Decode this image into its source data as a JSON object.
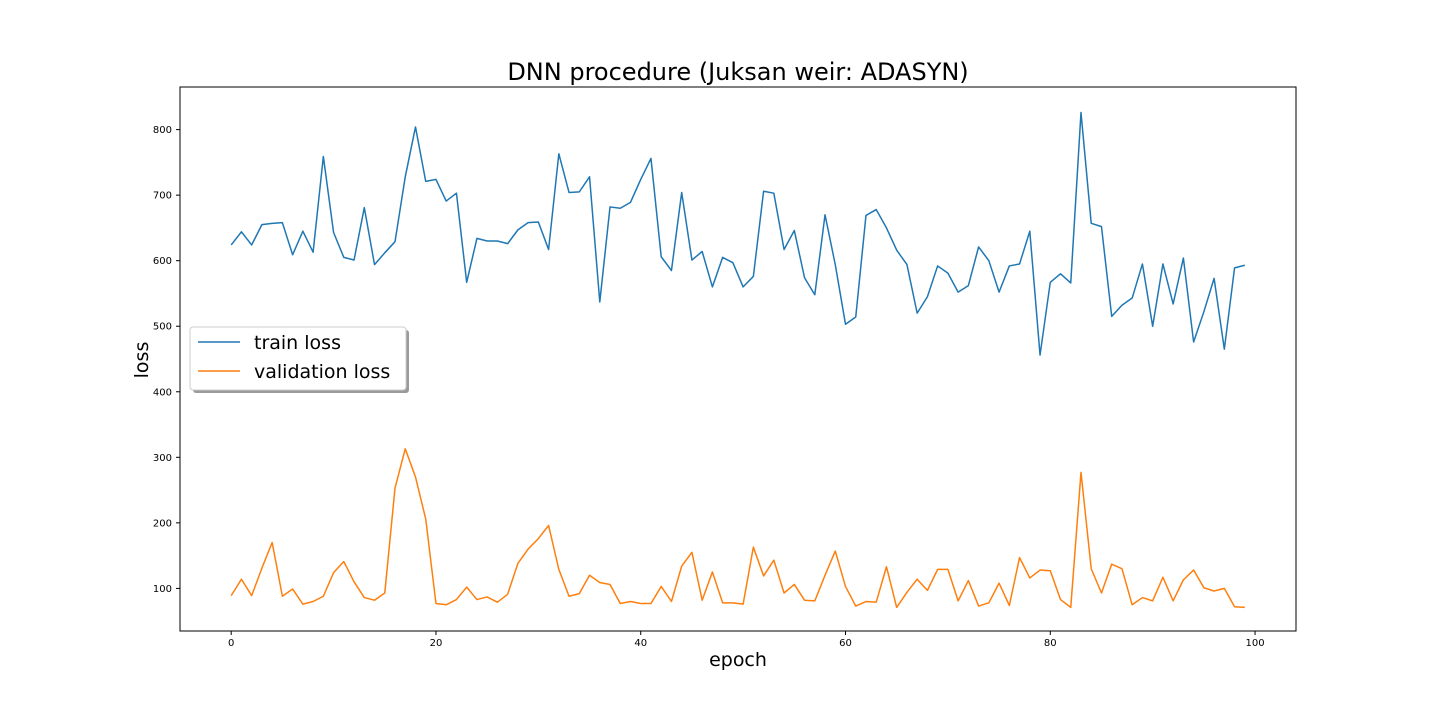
{
  "chart_data": {
    "type": "line",
    "title": "DNN procedure (Juksan weir: ADASYN)",
    "xlabel": "epoch",
    "ylabel": "loss",
    "xlim": [
      -5,
      104
    ],
    "ylim": [
      35,
      865
    ],
    "xticks": [
      0,
      20,
      40,
      60,
      80,
      100
    ],
    "yticks": [
      100,
      200,
      300,
      400,
      500,
      600,
      700,
      800
    ],
    "grid": false,
    "legend_position": "center-left",
    "series": [
      {
        "name": "train loss",
        "color": "#1f77b4",
        "x": [
          0,
          1,
          2,
          3,
          4,
          5,
          6,
          7,
          8,
          9,
          10,
          11,
          12,
          13,
          14,
          15,
          16,
          17,
          18,
          19,
          20,
          21,
          22,
          23,
          24,
          25,
          26,
          27,
          28,
          29,
          30,
          31,
          32,
          33,
          34,
          35,
          36,
          37,
          38,
          39,
          40,
          41,
          42,
          43,
          44,
          45,
          46,
          47,
          48,
          49,
          50,
          51,
          52,
          53,
          54,
          55,
          56,
          57,
          58,
          59,
          60,
          61,
          62,
          63,
          64,
          65,
          66,
          67,
          68,
          69,
          70,
          71,
          72,
          73,
          74,
          75,
          76,
          77,
          78,
          79,
          80,
          81,
          82,
          83,
          84,
          85,
          86,
          87,
          88,
          89,
          90,
          91,
          92,
          93,
          94,
          95,
          96,
          97,
          98,
          99
        ],
        "y": [
          624,
          644,
          624,
          655,
          657,
          658,
          609,
          645,
          613,
          759,
          643,
          605,
          601,
          681,
          594,
          612,
          629,
          728,
          804,
          721,
          724,
          691,
          703,
          567,
          634,
          630,
          630,
          626,
          647,
          658,
          659,
          617,
          763,
          704,
          705,
          728,
          537,
          682,
          680,
          689,
          724,
          756,
          606,
          585,
          704,
          601,
          614,
          560,
          605,
          597,
          560,
          576,
          706,
          703,
          617,
          646,
          574,
          548,
          670,
          594,
          503,
          514,
          669,
          678,
          650,
          616,
          594,
          520,
          545,
          592,
          581,
          552,
          562,
          621,
          600,
          552,
          592,
          595,
          645,
          456,
          567,
          580,
          566,
          826,
          657,
          652,
          515,
          532,
          543,
          595,
          500,
          595,
          534,
          604,
          476,
          522,
          573,
          465,
          589,
          593
        ]
      },
      {
        "name": "validation loss",
        "color": "#ff7f0e",
        "x": [
          0,
          1,
          2,
          3,
          4,
          5,
          6,
          7,
          8,
          9,
          10,
          11,
          12,
          13,
          14,
          15,
          16,
          17,
          18,
          19,
          20,
          21,
          22,
          23,
          24,
          25,
          26,
          27,
          28,
          29,
          30,
          31,
          32,
          33,
          34,
          35,
          36,
          37,
          38,
          39,
          40,
          41,
          42,
          43,
          44,
          45,
          46,
          47,
          48,
          49,
          50,
          51,
          52,
          53,
          54,
          55,
          56,
          57,
          58,
          59,
          60,
          61,
          62,
          63,
          64,
          65,
          66,
          67,
          68,
          69,
          70,
          71,
          72,
          73,
          74,
          75,
          76,
          77,
          78,
          79,
          80,
          81,
          82,
          83,
          84,
          85,
          86,
          87,
          88,
          89,
          90,
          91,
          92,
          93,
          94,
          95,
          96,
          97,
          98,
          99
        ],
        "y": [
          89,
          114,
          89,
          131,
          170,
          88,
          99,
          76,
          80,
          88,
          124,
          141,
          110,
          86,
          82,
          93,
          253,
          313,
          270,
          206,
          77,
          75,
          83,
          102,
          83,
          87,
          79,
          91,
          138,
          160,
          176,
          196,
          129,
          88,
          92,
          120,
          109,
          106,
          77,
          80,
          77,
          77,
          103,
          80,
          134,
          155,
          82,
          125,
          78,
          78,
          76,
          163,
          119,
          143,
          93,
          106,
          82,
          81,
          120,
          157,
          103,
          73,
          80,
          79,
          133,
          71,
          94,
          114,
          97,
          129,
          129,
          81,
          112,
          73,
          78,
          108,
          74,
          147,
          116,
          128,
          127,
          83,
          71,
          277,
          130,
          93,
          137,
          130,
          75,
          86,
          81,
          117,
          81,
          113,
          128,
          101,
          96,
          100,
          72,
          71
        ]
      }
    ]
  }
}
